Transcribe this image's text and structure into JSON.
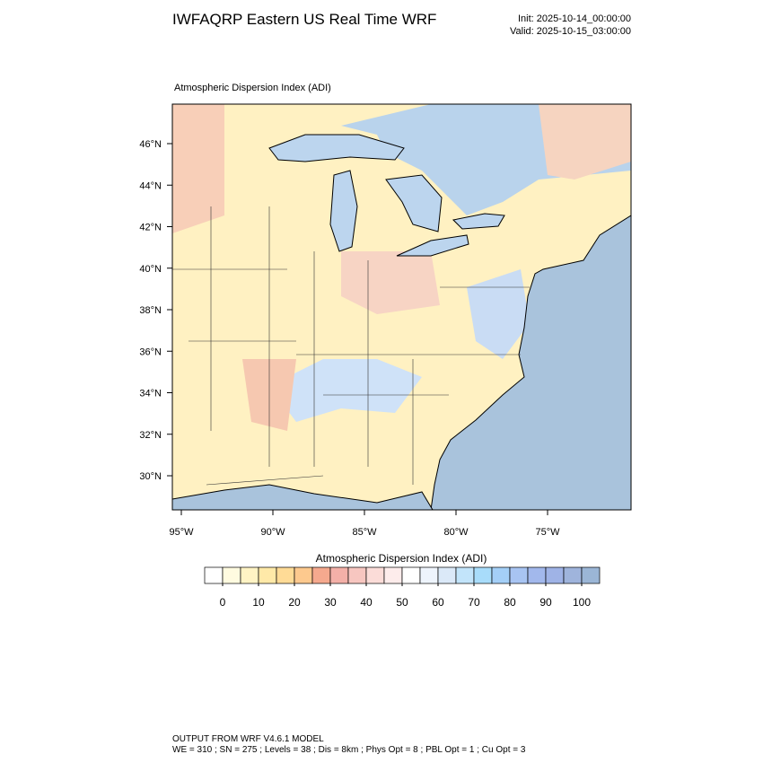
{
  "title": "IWFAQRP Eastern US Real Time WRF",
  "init": "Init: 2025-10-14_00:00:00",
  "valid": "Valid: 2025-10-15_03:00:00",
  "map_title": "Atmospheric Dispersion Index   (ADI)",
  "lat_labels": [
    "46°N",
    "44°N",
    "42°N",
    "40°N",
    "38°N",
    "36°N",
    "34°N",
    "32°N",
    "30°N"
  ],
  "lon_labels": [
    "95°W",
    "90°W",
    "85°W",
    "80°W",
    "75°W"
  ],
  "colorbar": {
    "title": "Atmospheric Dispersion Index  (ADI)",
    "ticks": [
      0,
      10,
      20,
      30,
      40,
      50,
      60,
      70,
      80,
      90,
      100
    ],
    "colors": [
      "#ffffff",
      "#fffbe0",
      "#fff3c4",
      "#ffe9a8",
      "#ffdb96",
      "#fdc98e",
      "#f5a98e",
      "#f3b0a8",
      "#f7c6c0",
      "#fbdcd8",
      "#fdeceb",
      "#ffffff",
      "#eef4fc",
      "#dbe9f8",
      "#c2e4fa",
      "#a8dcfa",
      "#a4cff7",
      "#a8c4f2",
      "#a2b8ec",
      "#9fb3e6",
      "#9fb4dc",
      "#9bb6d6"
    ]
  },
  "footer": [
    "OUTPUT FROM WRF V4.6.1 MODEL",
    "WE = 310 ; SN = 275 ; Levels = 38 ; Dis = 8km ; Phys Opt = 8 ; PBL Opt = 1 ; Cu Opt = 3"
  ]
}
